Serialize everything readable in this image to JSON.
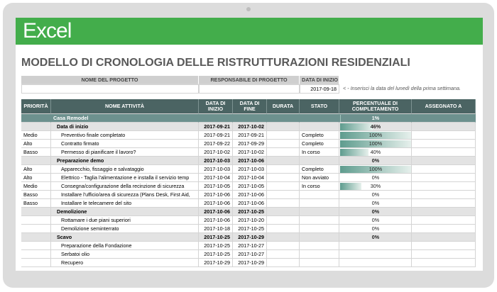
{
  "app": {
    "name": "Excel"
  },
  "title": "MODELLO DI CRONOLOGIA DELLE RISTRUTTURAZIONI RESIDENZIALI",
  "project": {
    "headers": [
      "NOME DEL PROGETTO",
      "RESPONSABILE DI PROGETTO",
      "DATA DI INIZIO"
    ],
    "values": [
      null,
      null,
      "2017-09-18"
    ],
    "note": "< - Inserisci la data del lunedì della prima settimana."
  },
  "table": {
    "headers": [
      "PRIORITÀ",
      "NOME ATTIVITÀ",
      "DATA DI INIZIO",
      "DATA DI FINE",
      "DURATA",
      "STATO",
      "PERCENTUALE DI COMPLETAMENTO",
      "ASSEGNATO A"
    ],
    "rows": [
      {
        "style": "summary",
        "cells": [
          null,
          "Casa Remodel",
          null,
          null,
          null,
          null,
          "1%",
          null
        ]
      },
      {
        "style": "section",
        "cells": [
          null,
          "Data di inizio",
          "2017-09-21",
          "2017-10-02",
          null,
          null,
          "46%",
          null
        ]
      },
      {
        "style": "task",
        "cells": [
          "Medio",
          "Preventivo finale completato",
          "2017-09-21",
          "2017-09-21",
          null,
          "Completo",
          "100%",
          null
        ]
      },
      {
        "style": "task",
        "cells": [
          "Alto",
          "Contratto firmato",
          "2017-09-22",
          "2017-09-29",
          null,
          "Completo",
          "100%",
          null
        ]
      },
      {
        "style": "task",
        "cells": [
          "Basso",
          "Permesso di pianificare il lavoro?",
          "2017-10-02",
          "2017-10-02",
          null,
          "In corso",
          "40%",
          null
        ]
      },
      {
        "style": "section",
        "cells": [
          null,
          "Preparazione demo",
          "2017-10-03",
          "2017-10-06",
          null,
          null,
          "0%",
          null
        ]
      },
      {
        "style": "task",
        "cells": [
          "Alto",
          "Apparecchio, fissaggio e salvataggio",
          "2017-10-03",
          "2017-10-03",
          null,
          "Completo",
          "100%",
          null
        ]
      },
      {
        "style": "task",
        "cells": [
          "Alto",
          "Elettrico - Taglia l'alimentazione e installa il servizio temp",
          "2017-10-04",
          "2017-10-04",
          null,
          "Non avviato",
          "0%",
          null
        ]
      },
      {
        "style": "task",
        "cells": [
          "Medio",
          "Consegna/configurazione della recinzione di sicurezza",
          "2017-10-05",
          "2017-10-05",
          null,
          "In corso",
          "30%",
          null
        ]
      },
      {
        "style": "task",
        "cells": [
          "Basso",
          "Installare l'ufficio/area di sicurezza (Plans Desk, First Aid,",
          "2017-10-06",
          "2017-10-06",
          null,
          null,
          "0%",
          null
        ]
      },
      {
        "style": "task",
        "cells": [
          "Basso",
          "Installare le telecamere del sito",
          "2017-10-06",
          "2017-10-06",
          null,
          null,
          "0%",
          null
        ]
      },
      {
        "style": "section",
        "cells": [
          null,
          "Demolizione",
          "2017-10-06",
          "2017-10-25",
          null,
          null,
          "0%",
          null
        ]
      },
      {
        "style": "task",
        "cells": [
          null,
          "Rottamare i due piani superiori",
          "2017-10-06",
          "2017-10-20",
          null,
          null,
          "0%",
          null
        ]
      },
      {
        "style": "task",
        "cells": [
          null,
          "Demolizione seminterrato",
          "2017-10-18",
          "2017-10-25",
          null,
          null,
          "0%",
          null
        ]
      },
      {
        "style": "section",
        "cells": [
          null,
          "Scavo",
          "2017-10-25",
          "2017-10-29",
          null,
          null,
          "0%",
          null
        ]
      },
      {
        "style": "task",
        "cells": [
          null,
          "Preparazione della Fondazione",
          "2017-10-25",
          "2017-10-27",
          null,
          null,
          null,
          null
        ]
      },
      {
        "style": "task",
        "cells": [
          null,
          "Serbatoi olio",
          "2017-10-25",
          "2017-10-27",
          null,
          null,
          null,
          null
        ]
      },
      {
        "style": "task",
        "cells": [
          null,
          "Recupero",
          "2017-10-29",
          "2017-10-29",
          null,
          null,
          null,
          null
        ]
      }
    ]
  }
}
